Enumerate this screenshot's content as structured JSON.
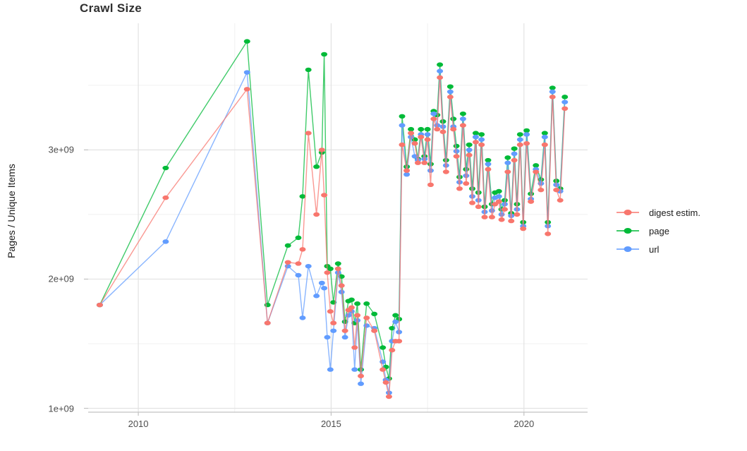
{
  "page": {
    "title": "Crawl Size"
  },
  "colors": {
    "digest": "#F8766D",
    "page": "#00BA38",
    "url": "#619CFF",
    "grid_major": "#E2E2E2",
    "grid_minor": "#F0F0F0",
    "axis_line": "#C2C2C2",
    "tick_text": "#4D4D4D",
    "text": "#1A1A1A"
  },
  "legend": {
    "items": [
      {
        "label": "digest estim.",
        "color": "#F8766D"
      },
      {
        "label": "page",
        "color": "#00BA38"
      },
      {
        "label": "url",
        "color": "#619CFF"
      }
    ]
  },
  "chart_data": {
    "type": "line",
    "title": "Crawl Size",
    "xlabel": "",
    "ylabel": "Pages / Unique Items",
    "value_unit": "1e9 (billions), y tick labels shown in scientific notation",
    "grid": true,
    "legend_position": "right",
    "xlim": [
      2008.7,
      2021.65
    ],
    "ylim_billions": [
      0.97,
      3.98
    ],
    "x_ticks": [
      {
        "value": 2010,
        "label": "2010"
      },
      {
        "value": 2015,
        "label": "2015"
      },
      {
        "value": 2020,
        "label": "2020"
      }
    ],
    "y_ticks": [
      {
        "value": 1,
        "label": "1e+09"
      },
      {
        "value": 2,
        "label": "2e+09"
      },
      {
        "value": 3,
        "label": "3e+09"
      }
    ],
    "x_minor": [
      2012.5,
      2017.5
    ],
    "y_minor": [
      1.5,
      2.5,
      3.5
    ],
    "x": [
      2009.0,
      2010.71,
      2012.82,
      2013.35,
      2013.88,
      2014.15,
      2014.26,
      2014.41,
      2014.62,
      2014.76,
      2014.82,
      2014.9,
      2014.98,
      2015.06,
      2015.18,
      2015.27,
      2015.36,
      2015.45,
      2015.53,
      2015.61,
      2015.68,
      2015.77,
      2015.92,
      2016.12,
      2016.34,
      2016.42,
      2016.5,
      2016.58,
      2016.67,
      2016.76,
      2016.84,
      2016.96,
      2017.07,
      2017.17,
      2017.25,
      2017.33,
      2017.42,
      2017.5,
      2017.58,
      2017.66,
      2017.75,
      2017.82,
      2017.9,
      2017.98,
      2018.09,
      2018.17,
      2018.25,
      2018.33,
      2018.42,
      2018.5,
      2018.58,
      2018.66,
      2018.75,
      2018.82,
      2018.9,
      2018.98,
      2019.07,
      2019.17,
      2019.25,
      2019.35,
      2019.42,
      2019.5,
      2019.58,
      2019.67,
      2019.75,
      2019.82,
      2019.9,
      2019.98,
      2020.07,
      2020.18,
      2020.31,
      2020.44,
      2020.54,
      2020.62,
      2020.74,
      2020.84,
      2020.94,
      2021.06
    ],
    "series": [
      {
        "name": "digest estim.",
        "color": "#F8766D",
        "values": [
          1.8,
          2.63,
          3.47,
          1.66,
          2.13,
          2.12,
          2.23,
          3.13,
          2.5,
          3.0,
          2.65,
          2.05,
          1.75,
          1.66,
          2.08,
          1.95,
          1.6,
          1.76,
          1.78,
          1.47,
          1.72,
          1.25,
          1.7,
          1.6,
          1.3,
          1.2,
          1.09,
          1.45,
          1.52,
          1.52,
          3.04,
          2.84,
          3.13,
          3.05,
          2.9,
          3.1,
          2.9,
          3.08,
          2.73,
          3.24,
          3.16,
          3.56,
          3.14,
          2.83,
          3.41,
          3.16,
          2.95,
          2.7,
          3.19,
          2.74,
          2.96,
          2.59,
          3.06,
          2.56,
          3.04,
          2.48,
          2.85,
          2.48,
          2.58,
          2.6,
          2.46,
          2.54,
          2.83,
          2.45,
          2.92,
          2.5,
          3.04,
          2.39,
          3.05,
          2.6,
          2.83,
          2.69,
          3.04,
          2.35,
          3.41,
          2.69,
          2.61,
          3.32
        ]
      },
      {
        "name": "page",
        "color": "#00BA38",
        "values": [
          1.8,
          2.86,
          3.84,
          1.8,
          2.26,
          2.32,
          2.64,
          3.62,
          2.87,
          2.98,
          3.74,
          2.1,
          2.08,
          1.82,
          2.12,
          2.02,
          1.67,
          1.83,
          1.84,
          1.66,
          1.81,
          1.3,
          1.81,
          1.73,
          1.47,
          1.32,
          1.23,
          1.62,
          1.72,
          1.69,
          3.26,
          2.87,
          3.16,
          3.08,
          2.93,
          3.16,
          2.95,
          3.16,
          2.89,
          3.3,
          3.27,
          3.66,
          3.22,
          2.92,
          3.49,
          3.24,
          3.03,
          2.79,
          3.28,
          2.85,
          3.04,
          2.7,
          3.13,
          2.67,
          3.12,
          2.56,
          2.92,
          2.58,
          2.67,
          2.68,
          2.54,
          2.61,
          2.94,
          2.51,
          3.01,
          2.58,
          3.12,
          2.44,
          3.15,
          2.66,
          2.88,
          2.77,
          3.13,
          2.44,
          3.48,
          2.76,
          2.7,
          3.41
        ]
      },
      {
        "name": "url",
        "color": "#619CFF",
        "values": [
          1.8,
          2.29,
          3.6,
          1.66,
          2.1,
          2.03,
          1.7,
          2.1,
          1.87,
          1.97,
          1.93,
          1.55,
          1.3,
          1.6,
          2.05,
          1.9,
          1.55,
          1.72,
          1.75,
          1.3,
          1.68,
          1.19,
          1.64,
          1.62,
          1.36,
          1.22,
          1.12,
          1.52,
          1.67,
          1.59,
          3.19,
          2.81,
          3.1,
          2.95,
          2.92,
          3.12,
          2.93,
          3.12,
          2.84,
          3.28,
          3.19,
          3.61,
          3.18,
          2.88,
          3.45,
          3.18,
          2.99,
          2.75,
          3.24,
          2.8,
          3.0,
          2.64,
          3.1,
          2.61,
          3.08,
          2.52,
          2.89,
          2.53,
          2.63,
          2.64,
          2.5,
          2.58,
          2.9,
          2.49,
          2.97,
          2.54,
          3.08,
          2.41,
          3.12,
          2.62,
          2.85,
          2.74,
          3.1,
          2.41,
          3.45,
          2.73,
          2.68,
          3.37
        ]
      }
    ]
  }
}
